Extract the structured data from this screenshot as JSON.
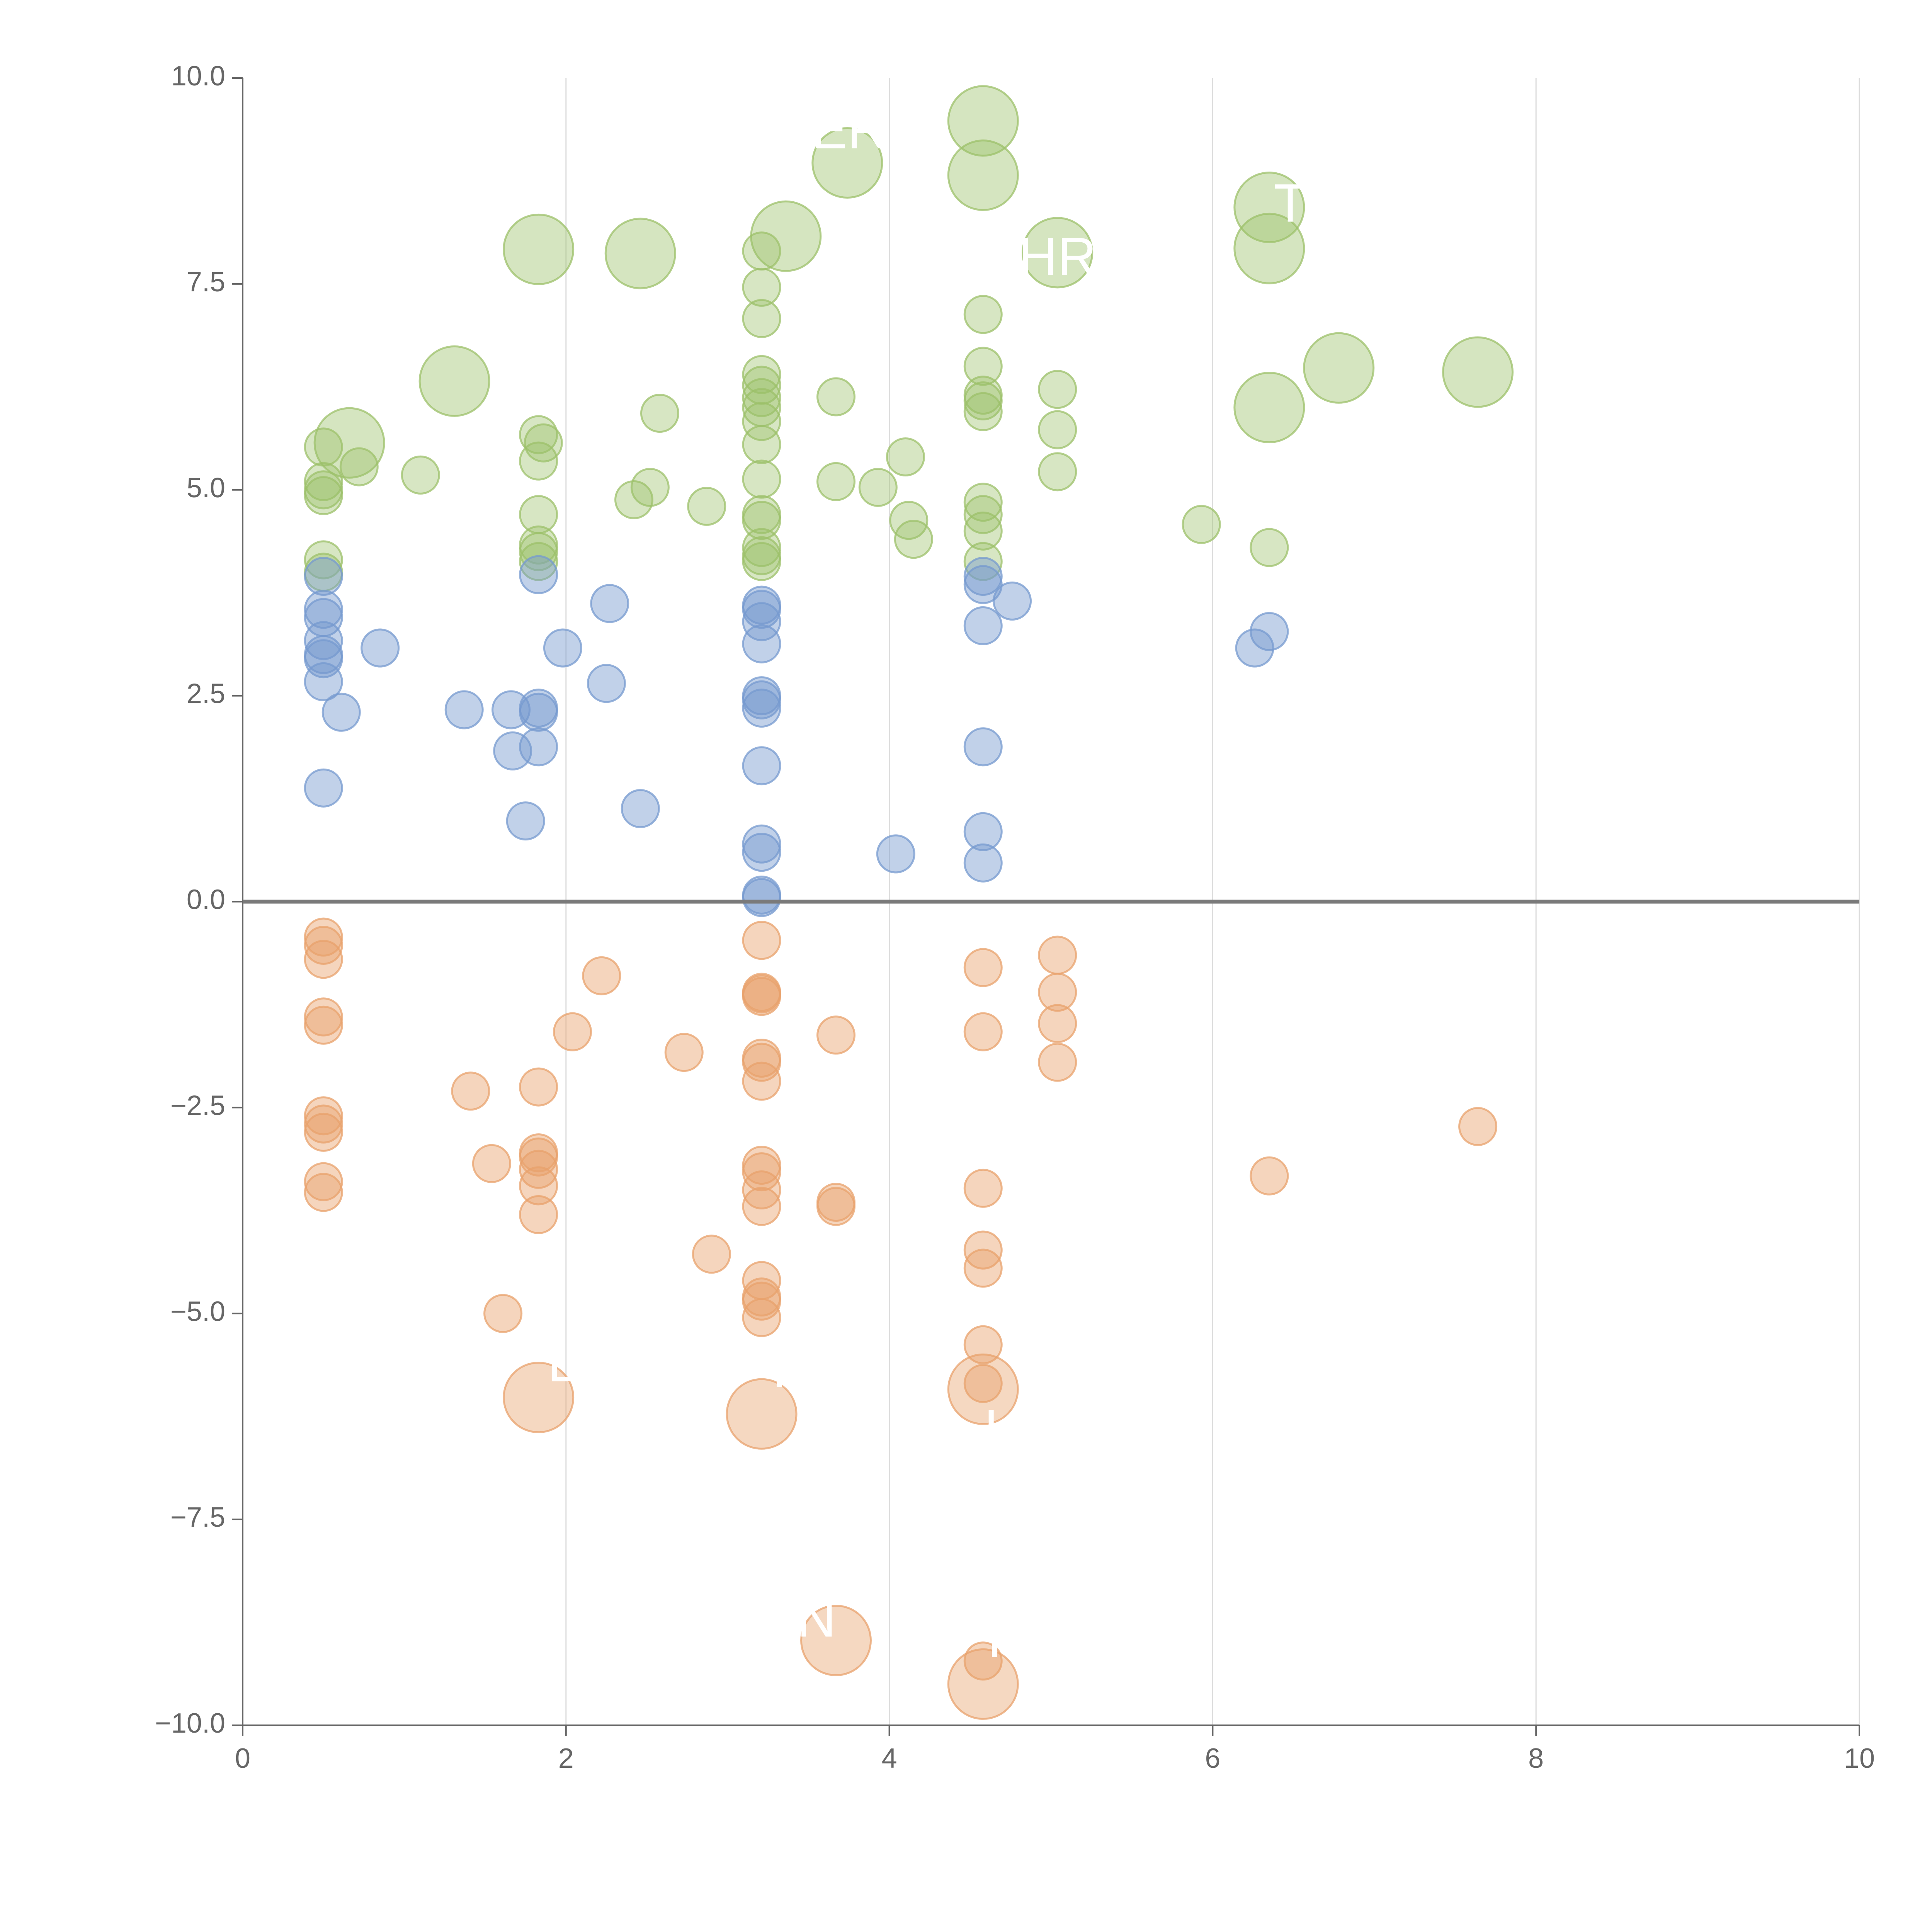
{
  "chart_data": {
    "type": "scatter",
    "title": "",
    "xlabel": "",
    "ylabel": "",
    "xlim": [
      0,
      10
    ],
    "ylim": [
      -10,
      10
    ],
    "x_ticks": [
      0,
      2,
      4,
      6,
      8,
      10
    ],
    "x_tick_labels": [
      "0",
      "2",
      "4",
      "6",
      "8",
      "10"
    ],
    "y_ticks": [
      10,
      7.5,
      5,
      2.5,
      0,
      -2.5,
      -5,
      -7.5,
      -10
    ],
    "y_tick_labels": [
      "10.0",
      "7.5",
      "5.0",
      "2.5",
      "0.0",
      "−2.5",
      "−5.0",
      "−7.5",
      "−10.0"
    ],
    "grid": "vertical",
    "series": [
      {
        "name": "green",
        "color": "#9cc06a",
        "fill_opacity": 0.4,
        "points": [
          [
            4.58,
            9.48,
            "l"
          ],
          [
            3.74,
            8.97,
            "l"
          ],
          [
            4.58,
            8.82,
            "l"
          ],
          [
            6.35,
            8.43,
            "l"
          ],
          [
            3.36,
            8.08,
            "l"
          ],
          [
            1.83,
            7.92,
            "l"
          ],
          [
            2.46,
            7.87,
            "l"
          ],
          [
            5.04,
            7.88,
            "l"
          ],
          [
            6.35,
            7.93,
            "l"
          ],
          [
            1.31,
            6.32,
            "l"
          ],
          [
            6.78,
            6.48,
            "l"
          ],
          [
            7.64,
            6.43,
            "l"
          ],
          [
            6.35,
            6.0,
            "l"
          ],
          [
            0.66,
            5.57,
            "l"
          ],
          [
            3.21,
            7.9
          ],
          [
            3.21,
            7.46
          ],
          [
            3.21,
            7.08
          ],
          [
            4.58,
            7.13
          ],
          [
            4.58,
            6.5
          ],
          [
            3.21,
            6.4
          ],
          [
            3.21,
            6.27
          ],
          [
            3.21,
            6.12
          ],
          [
            3.21,
            6.0
          ],
          [
            3.21,
            5.83
          ],
          [
            3.21,
            5.55
          ],
          [
            3.67,
            6.13
          ],
          [
            5.04,
            6.22
          ],
          [
            4.58,
            6.15
          ],
          [
            4.58,
            6.08
          ],
          [
            4.58,
            5.95
          ],
          [
            2.58,
            5.93
          ],
          [
            5.04,
            5.73
          ],
          [
            1.83,
            5.67
          ],
          [
            1.86,
            5.57
          ],
          [
            0.5,
            5.52
          ],
          [
            0.72,
            5.28
          ],
          [
            1.83,
            5.35
          ],
          [
            4.1,
            5.4
          ],
          [
            1.1,
            5.18
          ],
          [
            3.21,
            5.13
          ],
          [
            3.67,
            5.1
          ],
          [
            3.93,
            5.03
          ],
          [
            0.5,
            5.1
          ],
          [
            0.5,
            5.0
          ],
          [
            0.5,
            4.93
          ],
          [
            2.52,
            5.03
          ],
          [
            2.42,
            4.88
          ],
          [
            2.87,
            4.8
          ],
          [
            5.04,
            5.22
          ],
          [
            4.58,
            4.85
          ],
          [
            4.58,
            4.7
          ],
          [
            4.58,
            4.5
          ],
          [
            4.12,
            4.63
          ],
          [
            4.15,
            4.4
          ],
          [
            1.83,
            4.7
          ],
          [
            3.21,
            4.7
          ],
          [
            3.21,
            4.63
          ],
          [
            1.83,
            4.33
          ],
          [
            1.83,
            4.25
          ],
          [
            3.21,
            4.3
          ],
          [
            3.21,
            4.2
          ],
          [
            3.21,
            4.13
          ],
          [
            1.83,
            4.13
          ],
          [
            4.58,
            4.13
          ],
          [
            5.93,
            4.58
          ],
          [
            6.35,
            4.3
          ],
          [
            0.5,
            4.15
          ],
          [
            0.5,
            4.0
          ]
        ]
      },
      {
        "name": "blue",
        "color": "#7599cf",
        "fill_opacity": 0.45,
        "points": [
          [
            0.5,
            3.95
          ],
          [
            1.83,
            3.97
          ],
          [
            4.58,
            3.95
          ],
          [
            4.58,
            3.85
          ],
          [
            4.76,
            3.65
          ],
          [
            2.27,
            3.62
          ],
          [
            3.21,
            3.6
          ],
          [
            3.21,
            3.55
          ],
          [
            3.21,
            3.4
          ],
          [
            3.21,
            3.13
          ],
          [
            4.58,
            3.35
          ],
          [
            0.5,
            3.55
          ],
          [
            0.5,
            3.45
          ],
          [
            0.5,
            3.17
          ],
          [
            0.5,
            3.0
          ],
          [
            0.5,
            2.95
          ],
          [
            0.85,
            3.08
          ],
          [
            1.98,
            3.08
          ],
          [
            6.35,
            3.28
          ],
          [
            6.26,
            3.08
          ],
          [
            0.5,
            2.67
          ],
          [
            2.25,
            2.65
          ],
          [
            0.61,
            2.3
          ],
          [
            1.37,
            2.33
          ],
          [
            1.66,
            2.33
          ],
          [
            1.83,
            2.35
          ],
          [
            1.83,
            2.3
          ],
          [
            3.21,
            2.5
          ],
          [
            3.21,
            2.45
          ],
          [
            3.21,
            2.35
          ],
          [
            1.67,
            1.83
          ],
          [
            1.83,
            1.88
          ],
          [
            4.58,
            1.88
          ],
          [
            3.21,
            1.65
          ],
          [
            0.5,
            1.38
          ],
          [
            2.46,
            1.13
          ],
          [
            1.75,
            0.98
          ],
          [
            4.58,
            0.85
          ],
          [
            3.21,
            0.7
          ],
          [
            3.21,
            0.6
          ],
          [
            4.04,
            0.58
          ],
          [
            4.58,
            0.47
          ],
          [
            3.21,
            0.08
          ],
          [
            3.21,
            0.05
          ]
        ]
      },
      {
        "name": "orange",
        "color": "#e8a26c",
        "fill_opacity": 0.45,
        "points": [
          [
            0.5,
            -0.43
          ],
          [
            0.5,
            -0.53
          ],
          [
            0.5,
            -0.7
          ],
          [
            3.21,
            -0.47
          ],
          [
            4.58,
            -0.8
          ],
          [
            5.04,
            -0.65
          ],
          [
            2.22,
            -0.9
          ],
          [
            3.21,
            -1.1
          ],
          [
            3.21,
            -1.12
          ],
          [
            3.21,
            -1.15
          ],
          [
            5.04,
            -1.1
          ],
          [
            0.5,
            -1.4
          ],
          [
            0.5,
            -1.5
          ],
          [
            2.04,
            -1.58
          ],
          [
            3.67,
            -1.62
          ],
          [
            4.58,
            -1.58
          ],
          [
            5.04,
            -1.48
          ],
          [
            2.73,
            -1.83
          ],
          [
            3.21,
            -1.9
          ],
          [
            3.21,
            -1.95
          ],
          [
            5.04,
            -1.95
          ],
          [
            3.21,
            -2.18
          ],
          [
            1.41,
            -2.3
          ],
          [
            1.83,
            -2.25
          ],
          [
            0.5,
            -2.6
          ],
          [
            0.5,
            -2.7
          ],
          [
            0.5,
            -2.8
          ],
          [
            7.64,
            -2.73
          ],
          [
            1.54,
            -3.18
          ],
          [
            1.83,
            -3.05
          ],
          [
            1.83,
            -3.1
          ],
          [
            1.83,
            -3.25
          ],
          [
            3.21,
            -3.2
          ],
          [
            3.21,
            -3.28
          ],
          [
            6.35,
            -3.33
          ],
          [
            0.5,
            -3.4
          ],
          [
            0.5,
            -3.53
          ],
          [
            1.83,
            -3.45
          ],
          [
            3.21,
            -3.5
          ],
          [
            4.58,
            -3.48
          ],
          [
            3.67,
            -3.65
          ],
          [
            3.67,
            -3.7
          ],
          [
            3.21,
            -3.7
          ],
          [
            1.83,
            -3.8
          ],
          [
            2.9,
            -4.28
          ],
          [
            4.58,
            -4.23
          ],
          [
            4.58,
            -4.45
          ],
          [
            3.21,
            -4.6
          ],
          [
            3.21,
            -4.8
          ],
          [
            3.21,
            -4.85
          ],
          [
            3.21,
            -5.05
          ],
          [
            1.61,
            -5.0
          ],
          [
            4.58,
            -5.38
          ],
          [
            4.58,
            -5.85
          ],
          [
            4.58,
            -9.22
          ],
          [
            1.83,
            -6.02,
            "l"
          ],
          [
            3.21,
            -6.22,
            "l"
          ],
          [
            4.58,
            -5.92,
            "l"
          ],
          [
            3.67,
            -8.97,
            "l"
          ],
          [
            4.58,
            -9.5,
            "l"
          ]
        ]
      }
    ],
    "annotations": [
      {
        "text": "ER",
        "x": 3.75,
        "y": 9.32
      },
      {
        "text": "HR",
        "x": 5.04,
        "y": 7.78
      },
      {
        "text": "T",
        "x": 6.48,
        "y": 8.43
      },
      {
        "text": "L",
        "x": 1.98,
        "y": -5.65
      },
      {
        "text": "T",
        "x": 3.32,
        "y": -5.72
      },
      {
        "text": "I",
        "x": 4.63,
        "y": -6.45
      },
      {
        "text": "N",
        "x": 3.55,
        "y": -8.75
      },
      {
        "text": "I",
        "x": 4.65,
        "y": -9.0
      }
    ]
  }
}
